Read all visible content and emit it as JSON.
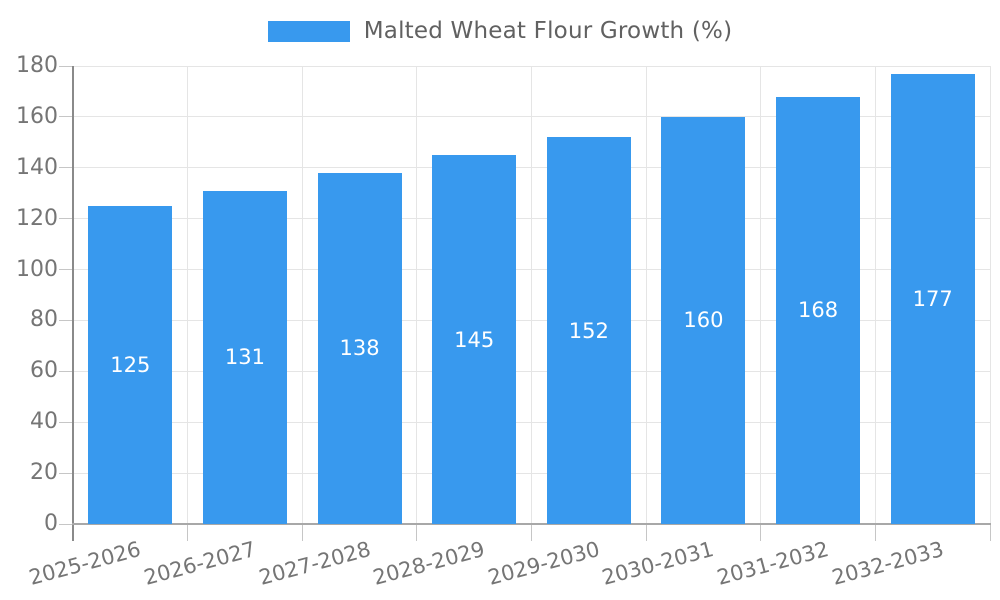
{
  "chart_data": {
    "type": "bar",
    "title": "Malted Wheat Flour Growth (%)",
    "categories": [
      "2025-2026",
      "2026-2027",
      "2027-2028",
      "2028-2029",
      "2029-2030",
      "2030-2031",
      "2031-2032",
      "2032-2033"
    ],
    "values": [
      125,
      131,
      138,
      145,
      152,
      160,
      168,
      177
    ],
    "xlabel": "",
    "ylabel": "",
    "ylim": [
      0,
      180
    ],
    "ytick_step": 20,
    "ytick_labels": [
      "0",
      "20",
      "40",
      "60",
      "80",
      "100",
      "120",
      "140",
      "160",
      "180"
    ],
    "grid": true,
    "legend_position": "top",
    "bar_color": "#3899ee",
    "bar_label_color": "#ffffff",
    "axis_text_color": "#757575",
    "gridline_color": "#e5e5e5"
  }
}
